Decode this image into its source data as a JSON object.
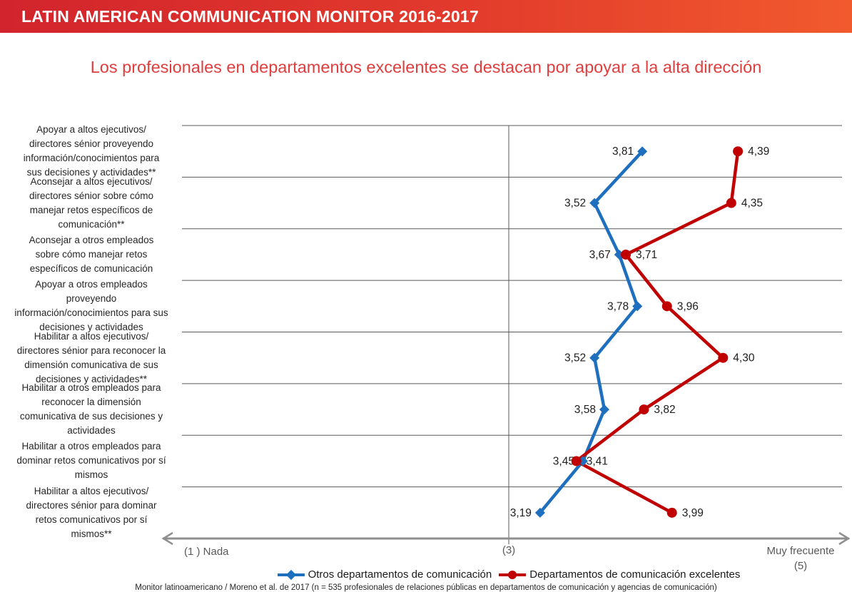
{
  "banner": {
    "title": "LATIN AMERICAN COMMUNICATION MONITOR 2016-2017"
  },
  "page": {
    "title": "Los profesionales en departamentos excelentes se destacan por apoyar a la alta dirección"
  },
  "chart_data": {
    "type": "line",
    "layout": "horizontal-dot-line, categories stacked vertically, value axis horizontal",
    "grid": true,
    "legend_position": "bottom",
    "categories": [
      "Apoyar a altos ejecutivos/\ndirectores sénior proveyendo\ninformación/conocimientos para\nsus decisiones y actividades**",
      "Aconsejar a altos ejecutivos/\ndirectores sénior sobre cómo\nmanejar retos específicos de\ncomunicación**",
      "Aconsejar a otros empleados\nsobre cómo manejar retos\nespecíficos de comunicación",
      "Apoyar a otros empleados\nproveyendo\ninformación/conocimientos para sus\ndecisiones y actividades",
      "Habilitar a altos ejecutivos/\ndirectores sénior para reconocer la\ndimensión comunicativa de sus\ndecisiones y actividades**",
      "Habilitar a otros empleados para\nreconocer la dimensión\ncomunicativa de sus decisiones y\nactividades",
      "Habilitar a otros empleados para\ndominar retos comunicativos por sí\nmismos",
      "Habilitar a altos ejecutivos/\ndirectores sénior para dominar\nretos comunicativos por sí\nmismos**"
    ],
    "series": [
      {
        "name": "Otros departamentos de comunicación",
        "color": "#1f6fbf",
        "marker": "diamond",
        "label_side": "left",
        "values": [
          3.81,
          3.52,
          3.67,
          3.78,
          3.52,
          3.58,
          3.45,
          3.19
        ],
        "labels": [
          "3,81",
          "3,52",
          "3,67",
          "3,78",
          "3,52",
          "3,58",
          "3,45",
          "3,19"
        ]
      },
      {
        "name": "Departamentos de comunicación excelentes",
        "color": "#c00000",
        "marker": "circle",
        "label_side": "right",
        "values": [
          4.39,
          4.35,
          3.71,
          3.96,
          4.3,
          3.82,
          3.41,
          3.99
        ],
        "labels": [
          "4,39",
          "4,35",
          "3,71",
          "3,96",
          "4,30",
          "3,82",
          "3,41",
          "3,99"
        ]
      }
    ],
    "axis": {
      "min": 1,
      "max": 5,
      "center": 3,
      "left_label": "(1 ) Nada",
      "center_label": "(3)",
      "right_label_line1": "Muy frecuente",
      "right_label_line2": "(5)"
    },
    "colors": {
      "grid": "#595959",
      "axis": "#8f8f8f",
      "data_label": "#202020"
    }
  },
  "footer": {
    "text": "Monitor latinoamericano / Moreno et al. de 2017 (n = 535 profesionales de relaciones públicas en departamentos de comunicación y agencias de comunicación)"
  }
}
